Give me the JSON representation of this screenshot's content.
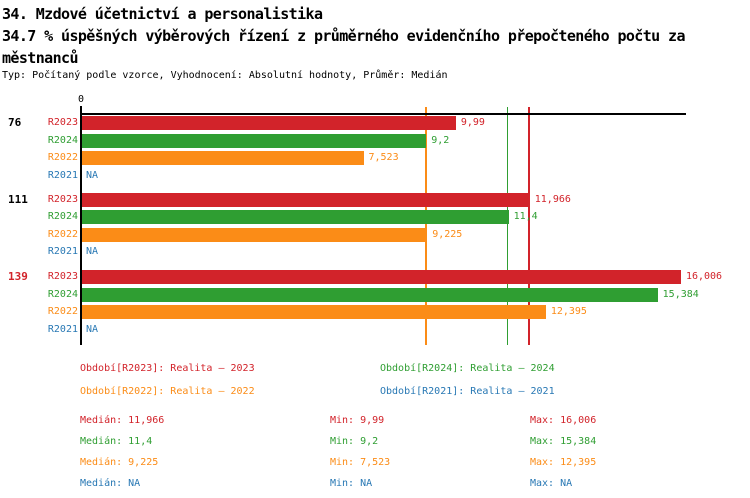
{
  "header": {
    "title": "34. Mzdové účetnictví a personalistika",
    "subtitle_line1": "34.7 % úspěšných výběrových řízení z průměrného evidenčního přepočteného počtu za",
    "subtitle_line2": "městnanců",
    "meta": "Typ: Počítaný podle vzorce, Vyhodnocení: Absolutní hodnoty, Průměr: Medián"
  },
  "colors": {
    "r2023": "#d2232a",
    "r2024": "#2f9e32",
    "r2022": "#fb8c17",
    "r2021": "#2878b4",
    "axis": "#000000"
  },
  "chart_data": {
    "type": "bar",
    "orientation": "horizontal",
    "title": "34.7 % úspěšných výběrových řízení z průměrného evidenčního přepočteného počtu zaměstnanců",
    "x_axis": {
      "tick_labels": [
        "0"
      ],
      "range": [
        0,
        16.2
      ],
      "grid": false
    },
    "series_order": [
      "R2023",
      "R2024",
      "R2022",
      "R2021"
    ],
    "series_colors": {
      "R2023": "#d2232a",
      "R2024": "#2f9e32",
      "R2022": "#fb8c17",
      "R2021": "#2878b4"
    },
    "na_text": "NA",
    "groups": [
      {
        "label": "76",
        "label_color": "#000000",
        "bars": [
          {
            "series": "R2023",
            "value": 9.99,
            "display": "9,99"
          },
          {
            "series": "R2024",
            "value": 9.2,
            "display": "9,2"
          },
          {
            "series": "R2022",
            "value": 7.523,
            "display": "7,523"
          },
          {
            "series": "R2021",
            "value": null,
            "display": "NA"
          }
        ]
      },
      {
        "label": "111",
        "label_color": "#000000",
        "bars": [
          {
            "series": "R2023",
            "value": 11.966,
            "display": "11,966"
          },
          {
            "series": "R2024",
            "value": 11.4,
            "display": "11,4"
          },
          {
            "series": "R2022",
            "value": 9.225,
            "display": "9,225"
          },
          {
            "series": "R2021",
            "value": null,
            "display": "NA"
          }
        ]
      },
      {
        "label": "139",
        "label_color": "#d2232a",
        "bars": [
          {
            "series": "R2023",
            "value": 16.006,
            "display": "16,006"
          },
          {
            "series": "R2024",
            "value": 15.384,
            "display": "15,384"
          },
          {
            "series": "R2022",
            "value": 12.395,
            "display": "12,395"
          },
          {
            "series": "R2021",
            "value": null,
            "display": "NA"
          }
        ]
      }
    ],
    "reference_lines": [
      {
        "series": "R2022",
        "value": 9.225,
        "color": "#fb8c17",
        "meaning": "median R2022"
      },
      {
        "series": "R2024",
        "value": 11.4,
        "color": "#2f9e32",
        "meaning": "median R2024"
      },
      {
        "series": "R2023",
        "value": 11.966,
        "color": "#d2232a",
        "meaning": "median R2023"
      }
    ],
    "legend_position": "bottom",
    "stats_summary": {
      "R2023": {
        "median": "11,966",
        "min": "9,99",
        "max": "16,006"
      },
      "R2024": {
        "median": "11,4",
        "min": "9,2",
        "max": "15,384"
      },
      "R2022": {
        "median": "9,225",
        "min": "7,523",
        "max": "12,395"
      },
      "R2021": {
        "median": "NA",
        "min": "NA",
        "max": "NA"
      }
    }
  },
  "legend": {
    "items": [
      {
        "label": "Období[R2023]: Realita – 2023",
        "color": "#d2232a",
        "row": 0,
        "col": 0
      },
      {
        "label": "Období[R2024]: Realita – 2024",
        "color": "#2f9e32",
        "row": 0,
        "col": 1
      },
      {
        "label": "Období[R2022]: Realita – 2022",
        "color": "#fb8c17",
        "row": 1,
        "col": 0
      },
      {
        "label": "Období[R2021]: Realita – 2021",
        "color": "#2878b4",
        "row": 1,
        "col": 1
      }
    ]
  },
  "stats": {
    "rows": [
      {
        "color": "#d2232a",
        "cells": [
          "Medián: 11,966",
          "Min: 9,99",
          "Max: 16,006"
        ]
      },
      {
        "color": "#2f9e32",
        "cells": [
          "Medián: 11,4",
          "Min: 9,2",
          "Max: 15,384"
        ]
      },
      {
        "color": "#fb8c17",
        "cells": [
          "Medián: 9,225",
          "Min: 7,523",
          "Max: 12,395"
        ]
      },
      {
        "color": "#2878b4",
        "cells": [
          "Medián: NA",
          "Min: NA",
          "Max: NA"
        ]
      }
    ]
  }
}
